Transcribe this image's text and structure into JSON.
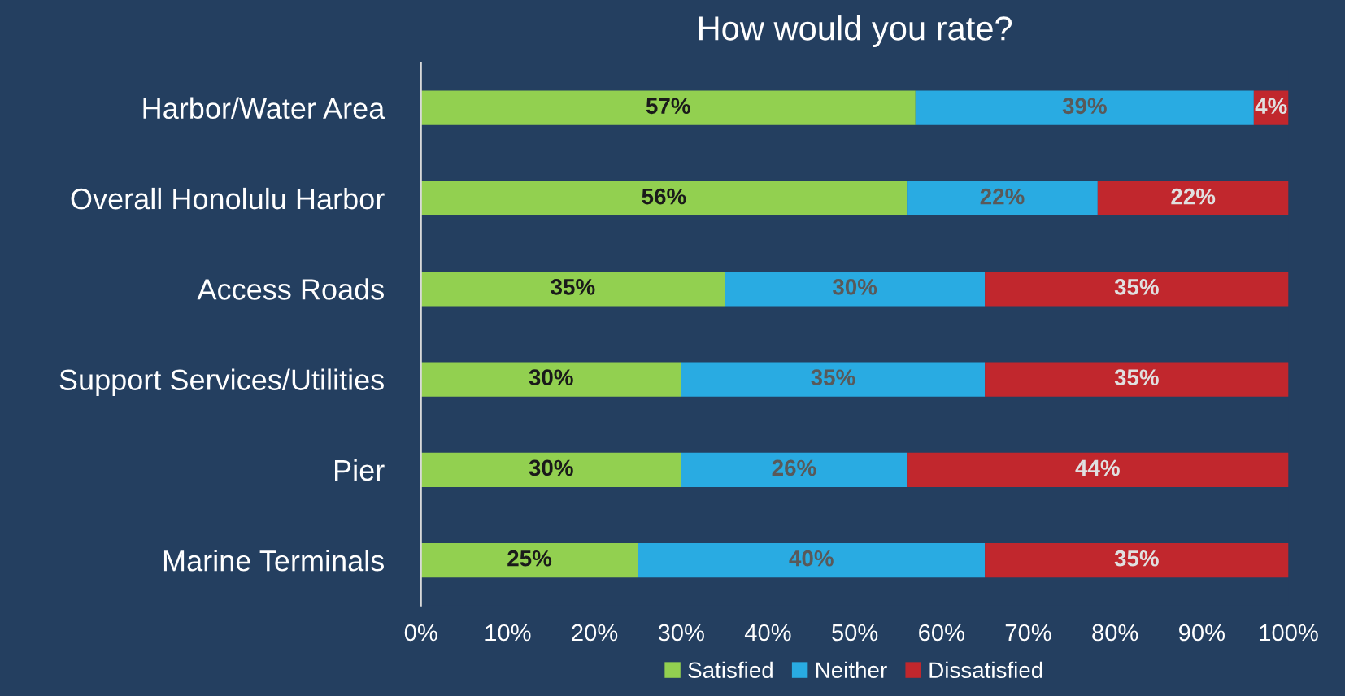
{
  "chart_data": {
    "type": "bar",
    "orientation": "horizontal",
    "stacked": true,
    "title": "How would you rate?",
    "categories": [
      "Harbor/Water Area",
      "Overall Honolulu Harbor",
      "Access Roads",
      "Support Services/Utilities",
      "Pier",
      "Marine Terminals"
    ],
    "series": [
      {
        "name": "Satisfied",
        "color": "#92d050",
        "values": [
          57,
          56,
          35,
          30,
          30,
          25
        ],
        "value_labels": [
          "57%",
          "56%",
          "35%",
          "30%",
          "30%",
          "25%"
        ]
      },
      {
        "name": "Neither",
        "color": "#29abe2",
        "values": [
          39,
          22,
          30,
          35,
          26,
          40
        ],
        "value_labels": [
          "39%",
          "22%",
          "30%",
          "35%",
          "26%",
          "40%"
        ]
      },
      {
        "name": "Dissatisfied",
        "color": "#c1272d",
        "values": [
          4,
          22,
          35,
          35,
          44,
          35
        ],
        "value_labels": [
          "4%",
          "22%",
          "35%",
          "35%",
          "44%",
          "35%"
        ]
      }
    ],
    "xlim": [
      0,
      100
    ],
    "xticks": [
      {
        "value": 0,
        "label": "0%"
      },
      {
        "value": 10,
        "label": "10%"
      },
      {
        "value": 20,
        "label": "20%"
      },
      {
        "value": 30,
        "label": "30%"
      },
      {
        "value": 40,
        "label": "40%"
      },
      {
        "value": 50,
        "label": "50%"
      },
      {
        "value": 60,
        "label": "60%"
      },
      {
        "value": 70,
        "label": "70%"
      },
      {
        "value": 80,
        "label": "80%"
      },
      {
        "value": 90,
        "label": "90%"
      },
      {
        "value": 100,
        "label": "100%"
      }
    ],
    "legend": "bottom",
    "grid": false
  }
}
